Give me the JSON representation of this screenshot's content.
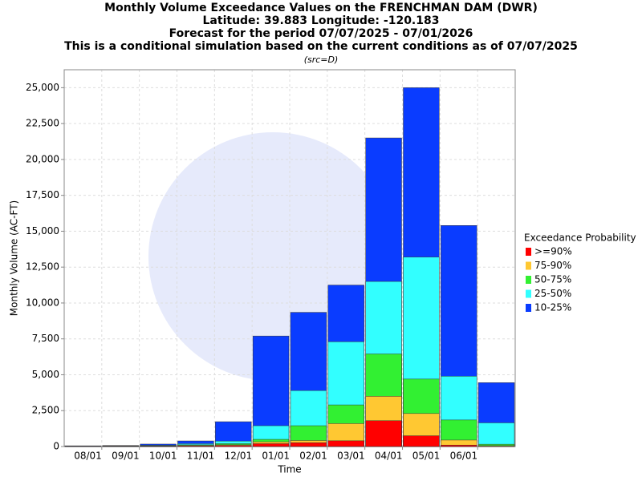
{
  "chart_data": {
    "type": "bar",
    "title": "Monthly Volume Exceedance Values on the FRENCHMAN DAM (DWR)",
    "subtitle_lines": [
      "Latitude: 39.883 Longitude: -120.183",
      "Forecast for the period 07/07/2025 - 07/01/2026",
      "This is a conditional simulation based on the current conditions as of 07/07/2025"
    ],
    "source_note": "(src=D)",
    "x_label": "Time",
    "y_label": "Monthly Volume (AC-FT)",
    "legend_title": "Exceedance Probability",
    "xticks": [
      "08/01",
      "09/01",
      "10/01",
      "11/01",
      "12/01",
      "01/01",
      "02/01",
      "03/01",
      "04/01",
      "05/01",
      "06/01"
    ],
    "series": [
      {
        "name": ">=90%",
        "color": "#ff0000",
        "values": [
          10,
          10,
          30,
          50,
          80,
          200,
          270,
          400,
          1800,
          750,
          100,
          20
        ]
      },
      {
        "name": "75-90%",
        "color": "#ffc832",
        "values": [
          15,
          15,
          40,
          80,
          120,
          330,
          420,
          1600,
          3500,
          2300,
          450,
          60
        ]
      },
      {
        "name": "50-75%",
        "color": "#32f032",
        "values": [
          20,
          25,
          60,
          120,
          200,
          500,
          1450,
          2900,
          6450,
          4700,
          1850,
          160
        ]
      },
      {
        "name": "25-50%",
        "color": "#32ffff",
        "values": [
          30,
          40,
          90,
          200,
          380,
          1450,
          3900,
          7300,
          11500,
          13200,
          4900,
          1650
        ]
      },
      {
        "name": "10-25%",
        "color": "#0a3cff",
        "values": [
          50,
          70,
          170,
          390,
          1730,
          7700,
          9350,
          11250,
          21500,
          25000,
          15400,
          4450
        ]
      }
    ],
    "ylim": [
      0,
      26250
    ],
    "yticks": [
      0,
      {
        "value": 2500,
        "label": "2,500"
      },
      {
        "value": 5000,
        "label": "5,000"
      },
      {
        "value": 7500,
        "label": "7,500"
      },
      {
        "value": 10000,
        "label": "10,000"
      },
      {
        "value": 12500,
        "label": "12,500"
      },
      {
        "value": 15000,
        "label": "15,000"
      },
      {
        "value": 17500,
        "label": "17,500"
      },
      {
        "value": 20000,
        "label": "20,000"
      },
      {
        "value": 22500,
        "label": "22,500"
      },
      {
        "value": 25000,
        "label": "25,000"
      }
    ],
    "grid": true
  }
}
